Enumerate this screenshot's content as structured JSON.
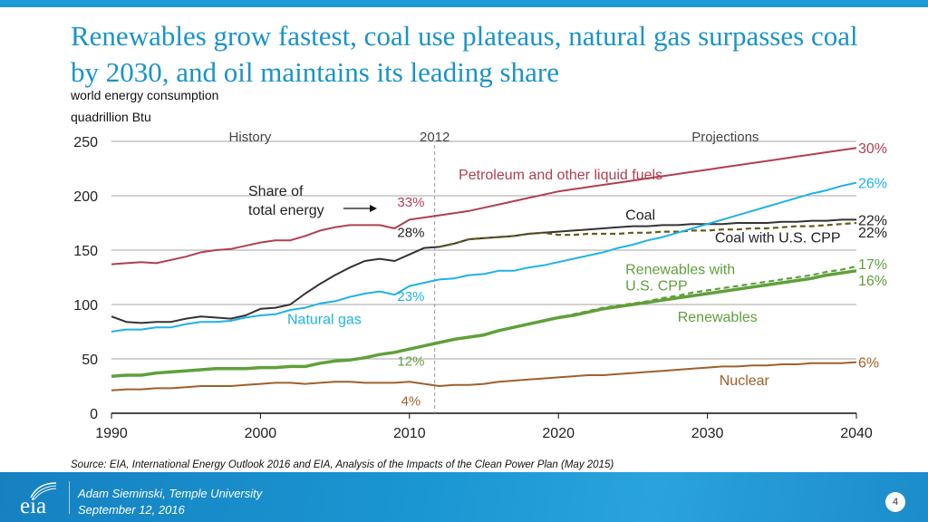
{
  "slide": {
    "title": "Renewables grow fastest, coal use plateaus, natural gas surpasses coal by 2030, and oil maintains its leading share",
    "subtitle_1": "world energy consumption",
    "subtitle_2": "quadrillion Btu",
    "source": "Source:  EIA, International Energy Outlook 2016 and EIA, Analysis of the Impacts of the Clean Power Plan (May 2015)",
    "footer": {
      "logo_text": "eia",
      "presenter": "Adam Sieminski, Temple University",
      "date": "September 12, 2016",
      "page_number": "4"
    },
    "colors": {
      "brand_blue": "#1a93c9",
      "petroleum": "#b0404f",
      "coal": "#333333",
      "coal_cpp": "#6b5a16",
      "natural_gas": "#1fb2e8",
      "renewables": "#5fa03b",
      "nuclear": "#a0602c"
    }
  },
  "chart_data": {
    "type": "line",
    "title": "",
    "xlabel": "",
    "ylabel": "quadrillion Btu",
    "xlim": [
      1990,
      2040
    ],
    "ylim": [
      0,
      250
    ],
    "x_ticks": [
      "1990",
      "2000",
      "2010",
      "2020",
      "2030",
      "2040"
    ],
    "y_ticks": [
      "0",
      "50",
      "100",
      "150",
      "200",
      "250"
    ],
    "grid": true,
    "history_label": "History",
    "divider_label": "2012",
    "divider_year": 2012,
    "projection_label": "Projections",
    "share_annotation": "Share of\ntotal energy",
    "x": [
      1990,
      1991,
      1992,
      1993,
      1994,
      1995,
      1996,
      1997,
      1998,
      1999,
      2000,
      2001,
      2002,
      2003,
      2004,
      2005,
      2006,
      2007,
      2008,
      2009,
      2010,
      2011,
      2012,
      2013,
      2014,
      2015,
      2016,
      2017,
      2018,
      2019,
      2020,
      2021,
      2022,
      2023,
      2024,
      2025,
      2026,
      2027,
      2028,
      2029,
      2030,
      2031,
      2032,
      2033,
      2034,
      2035,
      2036,
      2037,
      2038,
      2039,
      2040
    ],
    "series": [
      {
        "name": "Petroleum and other liquid fuels",
        "color_key": "petroleum",
        "style": "solid",
        "share_2012": "33%",
        "share_2040": "30%",
        "values": [
          137,
          138,
          139,
          138,
          141,
          144,
          148,
          150,
          151,
          154,
          157,
          159,
          159,
          163,
          168,
          171,
          173,
          173,
          173,
          170,
          178,
          180,
          182,
          184,
          186,
          189,
          192,
          195,
          198,
          201,
          204,
          206,
          208,
          210,
          212,
          214,
          216,
          218,
          220,
          222,
          224,
          226,
          228,
          230,
          232,
          234,
          236,
          238,
          240,
          242,
          244
        ]
      },
      {
        "name": "Coal",
        "color_key": "coal",
        "style": "solid",
        "share_2012": "28%",
        "share_2040": "22%",
        "values": [
          89,
          84,
          83,
          84,
          84,
          87,
          89,
          88,
          87,
          90,
          96,
          97,
          100,
          110,
          119,
          127,
          134,
          140,
          142,
          140,
          146,
          152,
          153,
          156,
          160,
          161,
          162,
          163,
          165,
          166,
          167,
          168,
          169,
          170,
          171,
          172,
          172,
          173,
          173,
          174,
          174,
          174,
          175,
          175,
          175,
          176,
          176,
          177,
          177,
          178,
          178
        ]
      },
      {
        "name": "Coal with U.S. CPP",
        "color_key": "coal_cpp",
        "style": "dashed",
        "share_2040": "22%",
        "values": [
          null,
          null,
          null,
          null,
          null,
          null,
          null,
          null,
          null,
          null,
          null,
          null,
          null,
          null,
          null,
          null,
          null,
          null,
          null,
          null,
          null,
          null,
          153,
          156,
          160,
          161,
          162,
          163,
          165,
          166,
          164,
          164,
          165,
          165,
          165,
          166,
          166,
          167,
          167,
          168,
          168,
          169,
          169,
          170,
          170,
          171,
          172,
          172,
          173,
          174,
          175
        ]
      },
      {
        "name": "Natural gas",
        "color_key": "natural_gas",
        "style": "solid",
        "share_2012": "23%",
        "share_2040": "26%",
        "values": [
          75,
          77,
          77,
          79,
          79,
          82,
          84,
          84,
          85,
          88,
          90,
          91,
          95,
          97,
          101,
          103,
          107,
          110,
          112,
          109,
          117,
          120,
          123,
          124,
          127,
          128,
          131,
          131,
          134,
          136,
          139,
          142,
          145,
          148,
          152,
          155,
          159,
          162,
          166,
          170,
          174,
          178,
          182,
          186,
          190,
          194,
          198,
          202,
          205,
          209,
          212
        ]
      },
      {
        "name": "Renewables",
        "color_key": "renewables",
        "style": "solid",
        "share_2012": "12%",
        "share_2040": "16%",
        "values": [
          34,
          35,
          35,
          37,
          38,
          39,
          40,
          41,
          41,
          41,
          42,
          42,
          43,
          43,
          46,
          48,
          49,
          51,
          54,
          56,
          59,
          62,
          65,
          68,
          70,
          72,
          76,
          79,
          82,
          85,
          88,
          90,
          93,
          96,
          98,
          100,
          102,
          104,
          106,
          108,
          110,
          112,
          114,
          116,
          118,
          120,
          122,
          124,
          127,
          129,
          131
        ]
      },
      {
        "name": "Renewables with U.S. CPP",
        "color_key": "renewables",
        "style": "dashed",
        "share_2040": "17%",
        "values": [
          null,
          null,
          null,
          null,
          null,
          null,
          null,
          null,
          null,
          null,
          null,
          null,
          null,
          null,
          null,
          null,
          null,
          null,
          null,
          null,
          null,
          null,
          65,
          68,
          70,
          72,
          76,
          79,
          82,
          85,
          88,
          91,
          94,
          97,
          99,
          101,
          103,
          106,
          108,
          111,
          113,
          115,
          117,
          119,
          121,
          123,
          125,
          127,
          130,
          132,
          135
        ]
      },
      {
        "name": "Nuclear",
        "color_key": "nuclear",
        "style": "solid",
        "share_2012": "4%",
        "share_2040": "6%",
        "values": [
          21,
          22,
          22,
          23,
          23,
          24,
          25,
          25,
          25,
          26,
          27,
          28,
          28,
          27,
          28,
          29,
          29,
          28,
          28,
          28,
          29,
          27,
          25,
          26,
          26,
          27,
          29,
          30,
          31,
          32,
          33,
          34,
          35,
          35,
          36,
          37,
          38,
          39,
          40,
          41,
          42,
          43,
          43,
          44,
          44,
          45,
          45,
          46,
          46,
          46,
          47
        ]
      }
    ],
    "annotations": [
      {
        "text": "Petroleum and other liquid fuels",
        "color_key": "petroleum",
        "x": 2013.3,
        "y": 215
      },
      {
        "text": "Coal",
        "color_key": "coal",
        "x": 2024.5,
        "y": 178
      },
      {
        "text": "Coal with U.S. CPP",
        "color_key": "coal",
        "x": 2030.5,
        "y": 157
      },
      {
        "text": "Natural gas",
        "color_key": "natural_gas",
        "x": 2001.8,
        "y": 82
      },
      {
        "text": "Renewables with",
        "color_key": "renewables",
        "x": 2024.5,
        "y": 128
      },
      {
        "text": "U.S. CPP",
        "color_key": "renewables",
        "x": 2024.5,
        "y": 113
      },
      {
        "text": "Renewables",
        "color_key": "renewables",
        "x": 2028.0,
        "y": 84
      },
      {
        "text": "Nuclear",
        "color_key": "nuclear",
        "x": 2030.8,
        "y": 26
      }
    ]
  }
}
